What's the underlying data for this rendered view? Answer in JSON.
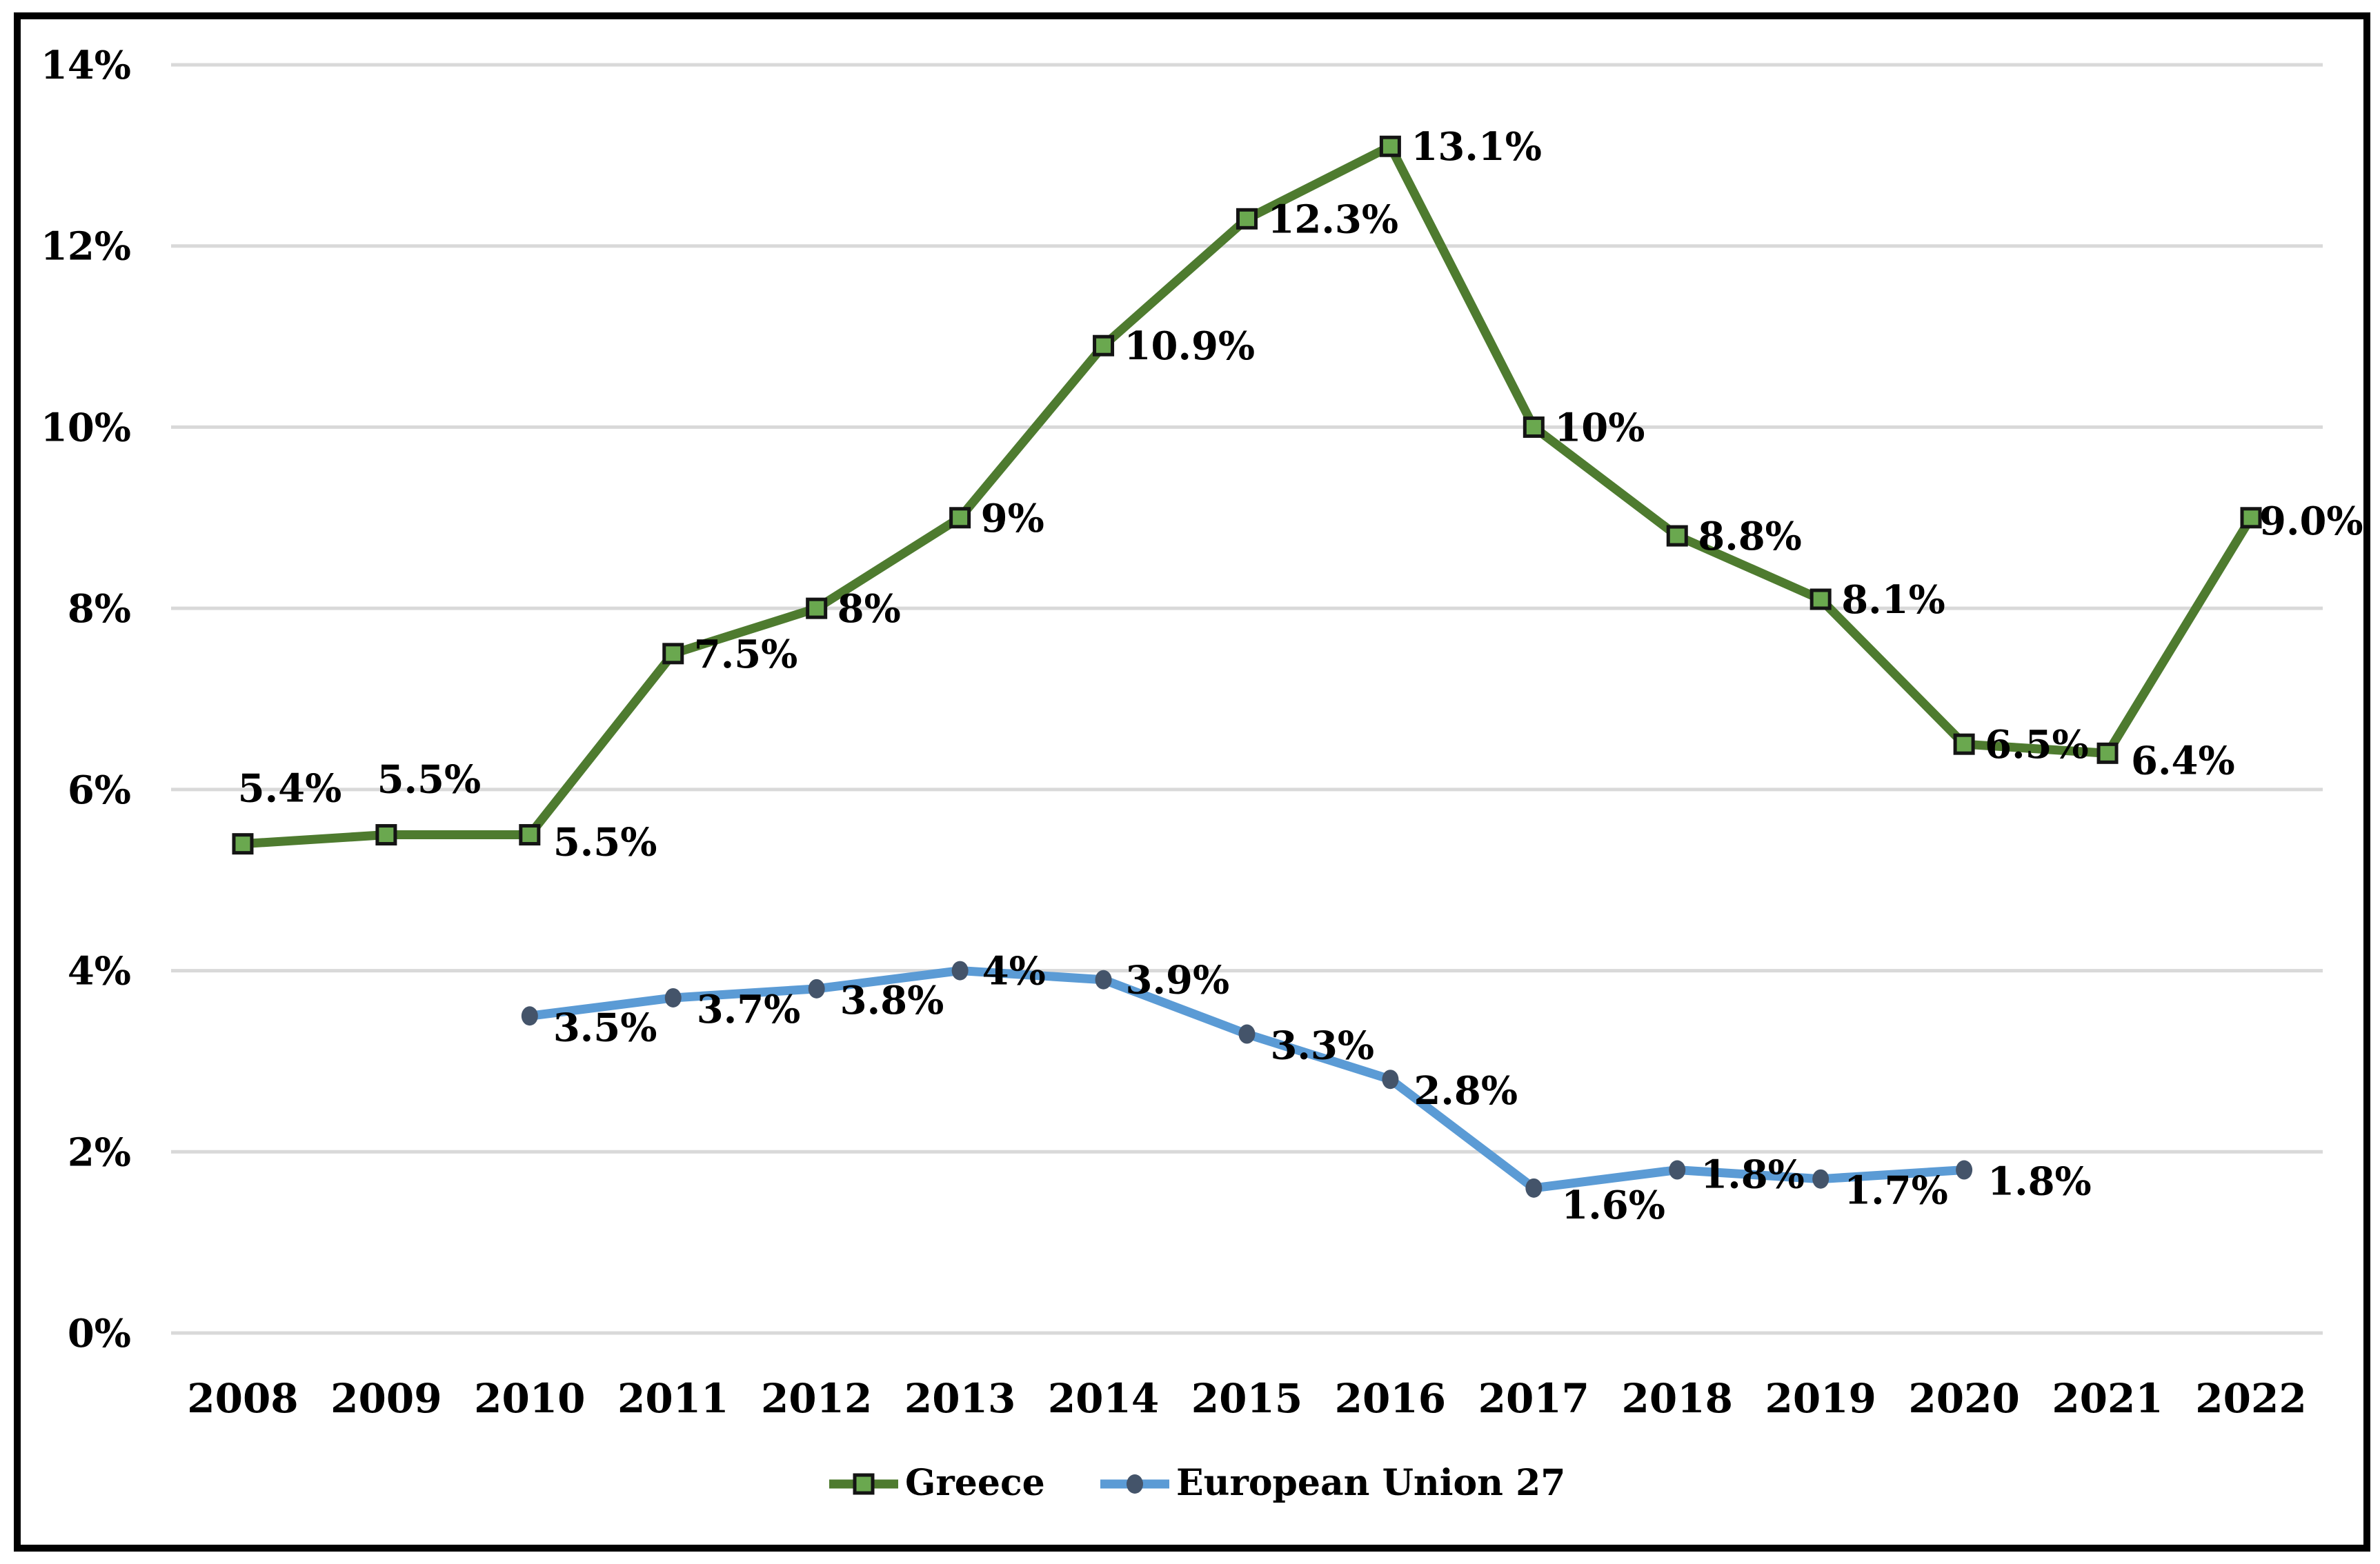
{
  "chart_data": {
    "type": "line",
    "title": "",
    "xlabel": "",
    "ylabel": "",
    "categories": [
      "2008",
      "2009",
      "2010",
      "2011",
      "2012",
      "2013",
      "2014",
      "2015",
      "2016",
      "2017",
      "2018",
      "2019",
      "2020",
      "2021",
      "2022"
    ],
    "yticks": [
      "0%",
      "2%",
      "4%",
      "6%",
      "8%",
      "10%",
      "12%",
      "14%"
    ],
    "ylim": [
      0,
      14
    ],
    "grid": "horizontal-gridlines",
    "legend_position": "bottom-center",
    "series": [
      {
        "name": "Greece",
        "line_color": "#4e7b2f",
        "marker": "square",
        "marker_color": "#6aa84f",
        "marker_outline": "#141414",
        "start_index": 0,
        "values": [
          5.4,
          5.5,
          5.5,
          7.5,
          8,
          9,
          10.9,
          12.3,
          13.1,
          10,
          8.8,
          8.1,
          6.5,
          6.4,
          9.0
        ],
        "labels": [
          "5.4%",
          "5.5%",
          "5.5%",
          "7.5%",
          "8%",
          "9%",
          "10.9%",
          "12.3%",
          "13.1%",
          "10%",
          "8.8%",
          "8.1%",
          "6.5%",
          "6.4%",
          "9.0%"
        ]
      },
      {
        "name": "European Union 27",
        "line_color": "#5b9bd5",
        "marker": "circle",
        "marker_color": "#44546a",
        "marker_outline": "#44546a",
        "start_index": 2,
        "values": [
          3.5,
          3.7,
          3.8,
          4,
          3.9,
          3.3,
          2.8,
          1.6,
          1.8,
          1.7,
          1.8
        ],
        "labels": [
          "3.5%",
          "3.7%",
          "3.8%",
          "4%",
          "3.9%",
          "3.3%",
          "2.8%",
          "1.6%",
          "1.8%",
          "1.7%",
          "1.8%"
        ]
      }
    ],
    "colors": {
      "grid": "#d9d9d9",
      "frame": "#000000",
      "text": "#000000",
      "background": "#ffffff"
    }
  }
}
